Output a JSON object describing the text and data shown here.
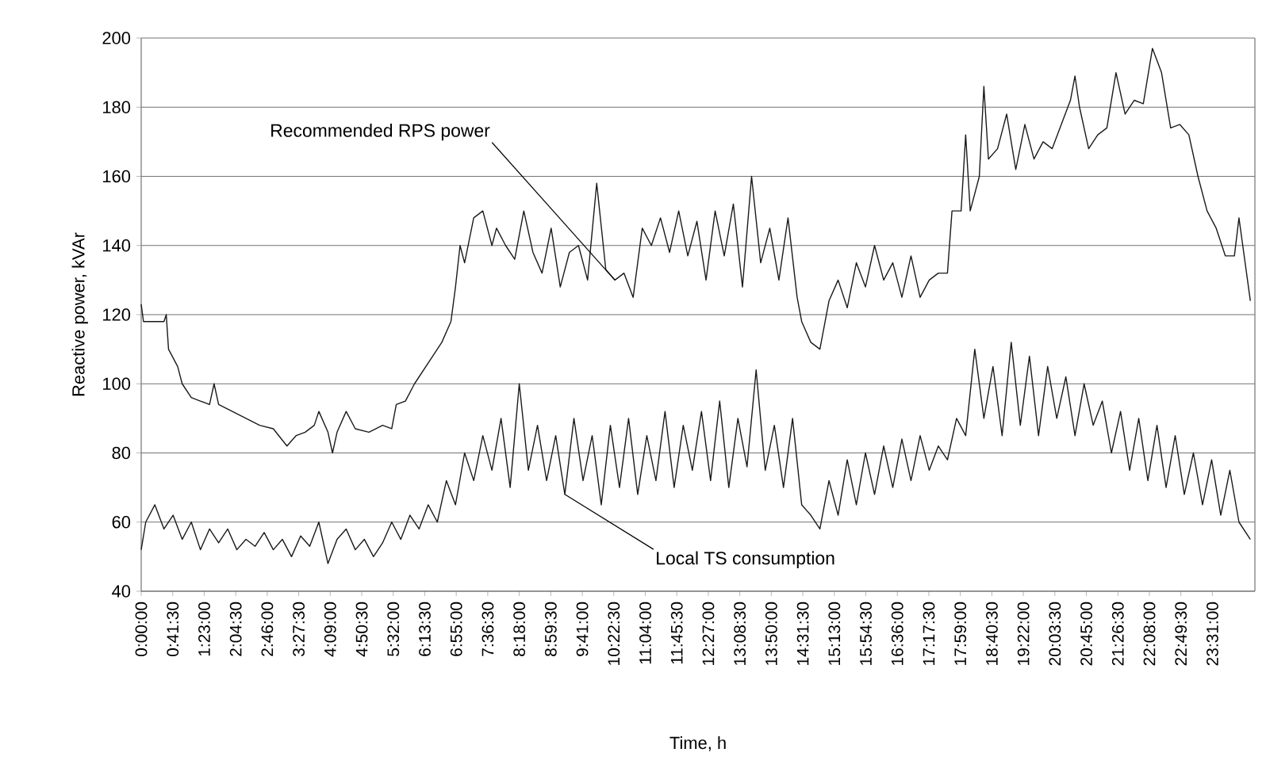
{
  "chart_data": {
    "type": "line",
    "xlabel": "Time, h",
    "ylabel": "Reactive power, kVAr",
    "xlim": [
      0,
      24.45
    ],
    "ylim": [
      40,
      200
    ],
    "yticks": [
      40,
      60,
      80,
      100,
      120,
      140,
      160,
      180,
      200
    ],
    "grid": "y",
    "xticks": [
      {
        "value": 0,
        "label": "0:00:00"
      },
      {
        "value": 0.6917,
        "label": "0:41:30"
      },
      {
        "value": 1.3833,
        "label": "1:23:00"
      },
      {
        "value": 2.075,
        "label": "2:04:30"
      },
      {
        "value": 2.7667,
        "label": "2:46:00"
      },
      {
        "value": 3.4583,
        "label": "3:27:30"
      },
      {
        "value": 4.15,
        "label": "4:09:00"
      },
      {
        "value": 4.8417,
        "label": "4:50:30"
      },
      {
        "value": 5.5333,
        "label": "5:32:00"
      },
      {
        "value": 6.225,
        "label": "6:13:30"
      },
      {
        "value": 6.9167,
        "label": "6:55:00"
      },
      {
        "value": 7.6083,
        "label": "7:36:30"
      },
      {
        "value": 8.3,
        "label": "8:18:00"
      },
      {
        "value": 8.9917,
        "label": "8:59:30"
      },
      {
        "value": 9.6833,
        "label": "9:41:00"
      },
      {
        "value": 10.375,
        "label": "10:22:30"
      },
      {
        "value": 11.0667,
        "label": "11:04:00"
      },
      {
        "value": 11.7583,
        "label": "11:45:30"
      },
      {
        "value": 12.45,
        "label": "12:27:00"
      },
      {
        "value": 13.1417,
        "label": "13:08:30"
      },
      {
        "value": 13.8333,
        "label": "13:50:00"
      },
      {
        "value": 14.525,
        "label": "14:31:30"
      },
      {
        "value": 15.2167,
        "label": "15:13:00"
      },
      {
        "value": 15.9083,
        "label": "15:54:30"
      },
      {
        "value": 16.6,
        "label": "16:36:00"
      },
      {
        "value": 17.2917,
        "label": "17:17:30"
      },
      {
        "value": 17.9833,
        "label": "17:59:00"
      },
      {
        "value": 18.675,
        "label": "18:40:30"
      },
      {
        "value": 19.3667,
        "label": "19:22:00"
      },
      {
        "value": 20.0583,
        "label": "20:03:30"
      },
      {
        "value": 20.75,
        "label": "20:45:00"
      },
      {
        "value": 21.4417,
        "label": "21:26:30"
      },
      {
        "value": 22.1333,
        "label": "22:08:00"
      },
      {
        "value": 22.825,
        "label": "22:49:30"
      },
      {
        "value": 23.5167,
        "label": "23:31:00"
      }
    ],
    "series": [
      {
        "color": "#1a1a1a",
        "x": [
          0,
          0.05,
          0.5,
          0.55,
          0.6,
          0.8,
          0.9,
          1.1,
          1.3,
          1.5,
          1.6,
          1.7,
          2.0,
          2.3,
          2.6,
          2.9,
          3.2,
          3.4,
          3.6,
          3.8,
          3.9,
          4.1,
          4.2,
          4.3,
          4.5,
          4.7,
          5.0,
          5.3,
          5.5,
          5.6,
          5.8,
          6.0,
          6.2,
          6.4,
          6.6,
          6.8,
          6.9,
          7.0,
          7.1,
          7.3,
          7.5,
          7.7,
          7.8,
          8.0,
          8.2,
          8.4,
          8.6,
          8.8,
          9.0,
          9.2,
          9.4,
          9.6,
          9.8,
          10.0,
          10.2,
          10.4,
          10.6,
          10.8,
          11.0,
          11.2,
          11.4,
          11.6,
          11.8,
          12.0,
          12.2,
          12.4,
          12.6,
          12.8,
          13.0,
          13.2,
          13.4,
          13.6,
          13.8,
          14.0,
          14.2,
          14.4,
          14.5,
          14.7,
          14.9,
          15.1,
          15.3,
          15.5,
          15.7,
          15.9,
          16.1,
          16.3,
          16.5,
          16.7,
          16.9,
          17.1,
          17.3,
          17.5,
          17.7,
          17.8,
          18.0,
          18.1,
          18.2,
          18.4,
          18.5,
          18.6,
          18.8,
          19.0,
          19.2,
          19.4,
          19.6,
          19.8,
          20.0,
          20.2,
          20.4,
          20.5,
          20.6,
          20.8,
          21.0,
          21.2,
          21.4,
          21.6,
          21.8,
          22.0,
          22.2,
          22.4,
          22.6,
          22.8,
          23.0,
          23.2,
          23.4,
          23.6,
          23.8,
          24.0,
          24.1,
          24.35
        ],
        "values": [
          123,
          118,
          118,
          120,
          110,
          105,
          100,
          96,
          95,
          94,
          100,
          94,
          92,
          90,
          88,
          87,
          82,
          85,
          86,
          88,
          92,
          86,
          80,
          86,
          92,
          87,
          86,
          88,
          87,
          94,
          95,
          100,
          104,
          108,
          112,
          118,
          128,
          140,
          135,
          148,
          150,
          140,
          145,
          140,
          136,
          150,
          138,
          132,
          145,
          128,
          138,
          140,
          130,
          158,
          133,
          130,
          132,
          125,
          145,
          140,
          148,
          138,
          150,
          137,
          147,
          130,
          150,
          137,
          152,
          128,
          160,
          135,
          145,
          130,
          148,
          125,
          118,
          112,
          110,
          124,
          130,
          122,
          135,
          128,
          140,
          130,
          135,
          125,
          137,
          125,
          130,
          132,
          132,
          150,
          150,
          172,
          150,
          160,
          186,
          165,
          168,
          178,
          162,
          175,
          165,
          170,
          168,
          175,
          182,
          189,
          180,
          168,
          172,
          174,
          190,
          178,
          182,
          181,
          197,
          190,
          174,
          175,
          172,
          160,
          150,
          145,
          137,
          137,
          148,
          124
        ]
      },
      {
        "color": "#1a1a1a",
        "x": [
          0,
          0.1,
          0.3,
          0.5,
          0.7,
          0.9,
          1.1,
          1.3,
          1.5,
          1.7,
          1.9,
          2.1,
          2.3,
          2.5,
          2.7,
          2.9,
          3.1,
          3.3,
          3.5,
          3.7,
          3.9,
          4.1,
          4.3,
          4.5,
          4.7,
          4.9,
          5.1,
          5.3,
          5.5,
          5.7,
          5.9,
          6.1,
          6.3,
          6.5,
          6.7,
          6.9,
          7.1,
          7.3,
          7.5,
          7.7,
          7.9,
          8.1,
          8.3,
          8.5,
          8.7,
          8.9,
          9.1,
          9.3,
          9.5,
          9.7,
          9.9,
          10.1,
          10.3,
          10.5,
          10.7,
          10.9,
          11.1,
          11.3,
          11.5,
          11.7,
          11.9,
          12.1,
          12.3,
          12.5,
          12.7,
          12.9,
          13.1,
          13.3,
          13.5,
          13.7,
          13.9,
          14.1,
          14.3,
          14.5,
          14.7,
          14.9,
          15.1,
          15.3,
          15.5,
          15.7,
          15.9,
          16.1,
          16.3,
          16.5,
          16.7,
          16.9,
          17.1,
          17.3,
          17.5,
          17.7,
          17.9,
          18.1,
          18.3,
          18.5,
          18.7,
          18.9,
          19.1,
          19.3,
          19.5,
          19.7,
          19.9,
          20.1,
          20.3,
          20.5,
          20.7,
          20.9,
          21.1,
          21.3,
          21.5,
          21.7,
          21.9,
          22.1,
          22.3,
          22.5,
          22.7,
          22.9,
          23.1,
          23.3,
          23.5,
          23.7,
          23.9,
          24.1,
          24.35
        ],
        "values": [
          52,
          60,
          65,
          58,
          62,
          55,
          60,
          52,
          58,
          54,
          58,
          52,
          55,
          53,
          57,
          52,
          55,
          50,
          56,
          53,
          60,
          48,
          55,
          58,
          52,
          55,
          50,
          54,
          60,
          55,
          62,
          58,
          65,
          60,
          72,
          65,
          80,
          72,
          85,
          75,
          90,
          70,
          100,
          75,
          88,
          72,
          85,
          68,
          90,
          72,
          85,
          65,
          88,
          70,
          90,
          68,
          85,
          72,
          92,
          70,
          88,
          75,
          92,
          72,
          95,
          70,
          90,
          76,
          104,
          75,
          88,
          70,
          90,
          65,
          62,
          58,
          72,
          62,
          78,
          65,
          80,
          68,
          82,
          70,
          84,
          72,
          85,
          75,
          82,
          78,
          90,
          85,
          110,
          90,
          105,
          85,
          112,
          88,
          108,
          85,
          105,
          90,
          102,
          85,
          100,
          88,
          95,
          80,
          92,
          75,
          90,
          72,
          88,
          70,
          85,
          68,
          80,
          65,
          78,
          62,
          75,
          60,
          55
        ]
      }
    ],
    "annotations": [
      {
        "text": "Recommended RPS power",
        "x": 10.4,
        "y": 130
      },
      {
        "text": "Local TS consumption",
        "x": 9.3,
        "y": 68
      }
    ]
  }
}
